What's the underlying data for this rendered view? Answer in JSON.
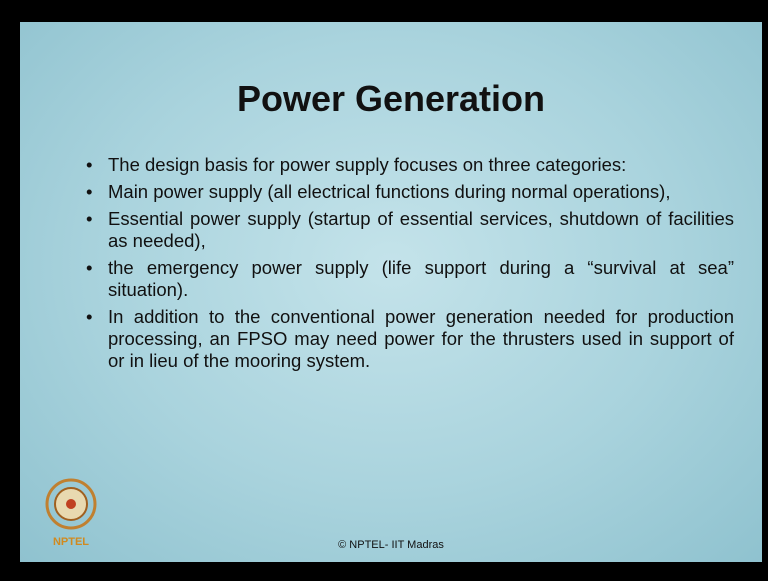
{
  "title": "Power Generation",
  "bullets": [
    "The design basis for power supply focuses on three categories:",
    "Main power supply (all electrical functions during normal operations),",
    "Essential power supply (startup of essential services, shutdown of facilities as needed),",
    "the emergency power supply (life support during a “survival at sea” situation).",
    "In addition to the conventional power generation needed for production processing, an FPSO may need power for the thrusters used in support of or in lieu of the mooring system."
  ],
  "footer": "© NPTEL- IIT Madras",
  "logo": "NPTEL"
}
